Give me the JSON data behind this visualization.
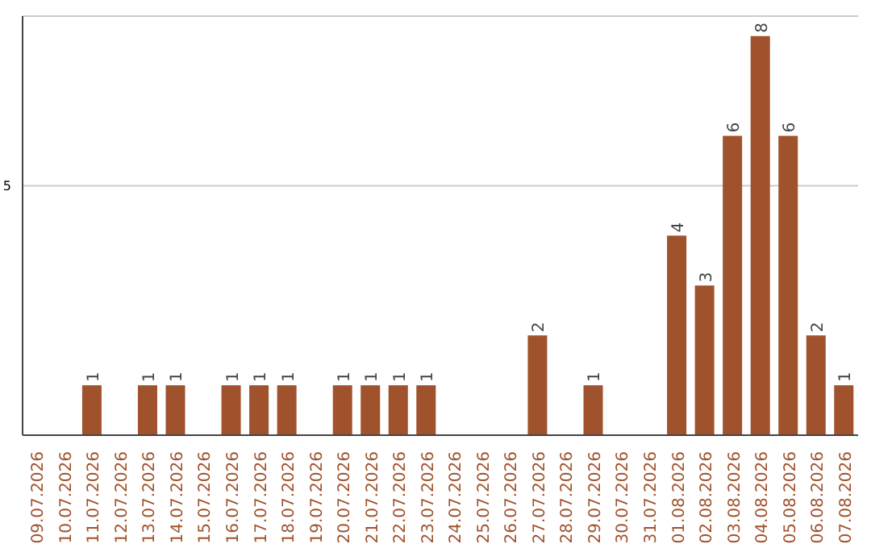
{
  "chart_data": {
    "type": "bar",
    "categories": [
      "09.07.2026",
      "10.07.2026",
      "11.07.2026",
      "12.07.2026",
      "13.07.2026",
      "14.07.2026",
      "15.07.2026",
      "16.07.2026",
      "17.07.2026",
      "18.07.2026",
      "19.07.2026",
      "20.07.2026",
      "21.07.2026",
      "22.07.2026",
      "23.07.2026",
      "24.07.2026",
      "25.07.2026",
      "26.07.2026",
      "27.07.2026",
      "28.07.2026",
      "29.07.2026",
      "30.07.2026",
      "31.07.2026",
      "01.08.2026",
      "02.08.2026",
      "03.08.2026",
      "04.08.2026",
      "05.08.2026",
      "06.08.2026",
      "07.08.2026"
    ],
    "values": [
      0,
      0,
      1,
      0,
      1,
      1,
      0,
      1,
      1,
      1,
      0,
      1,
      1,
      1,
      1,
      0,
      0,
      0,
      2,
      0,
      1,
      0,
      0,
      4,
      3,
      6,
      8,
      6,
      2,
      1
    ],
    "value_labels": [
      null,
      null,
      "1",
      null,
      "1",
      "1",
      null,
      "1",
      "1",
      "1",
      null,
      "1",
      "1",
      "1",
      "1",
      null,
      null,
      null,
      "2",
      null,
      "1",
      null,
      null,
      "4",
      "3",
      "6",
      "8",
      "6",
      "2",
      "1"
    ],
    "color": "#a0522d",
    "ylim": [
      0,
      8.4
    ],
    "yticks": [
      5
    ],
    "grid": "y"
  }
}
